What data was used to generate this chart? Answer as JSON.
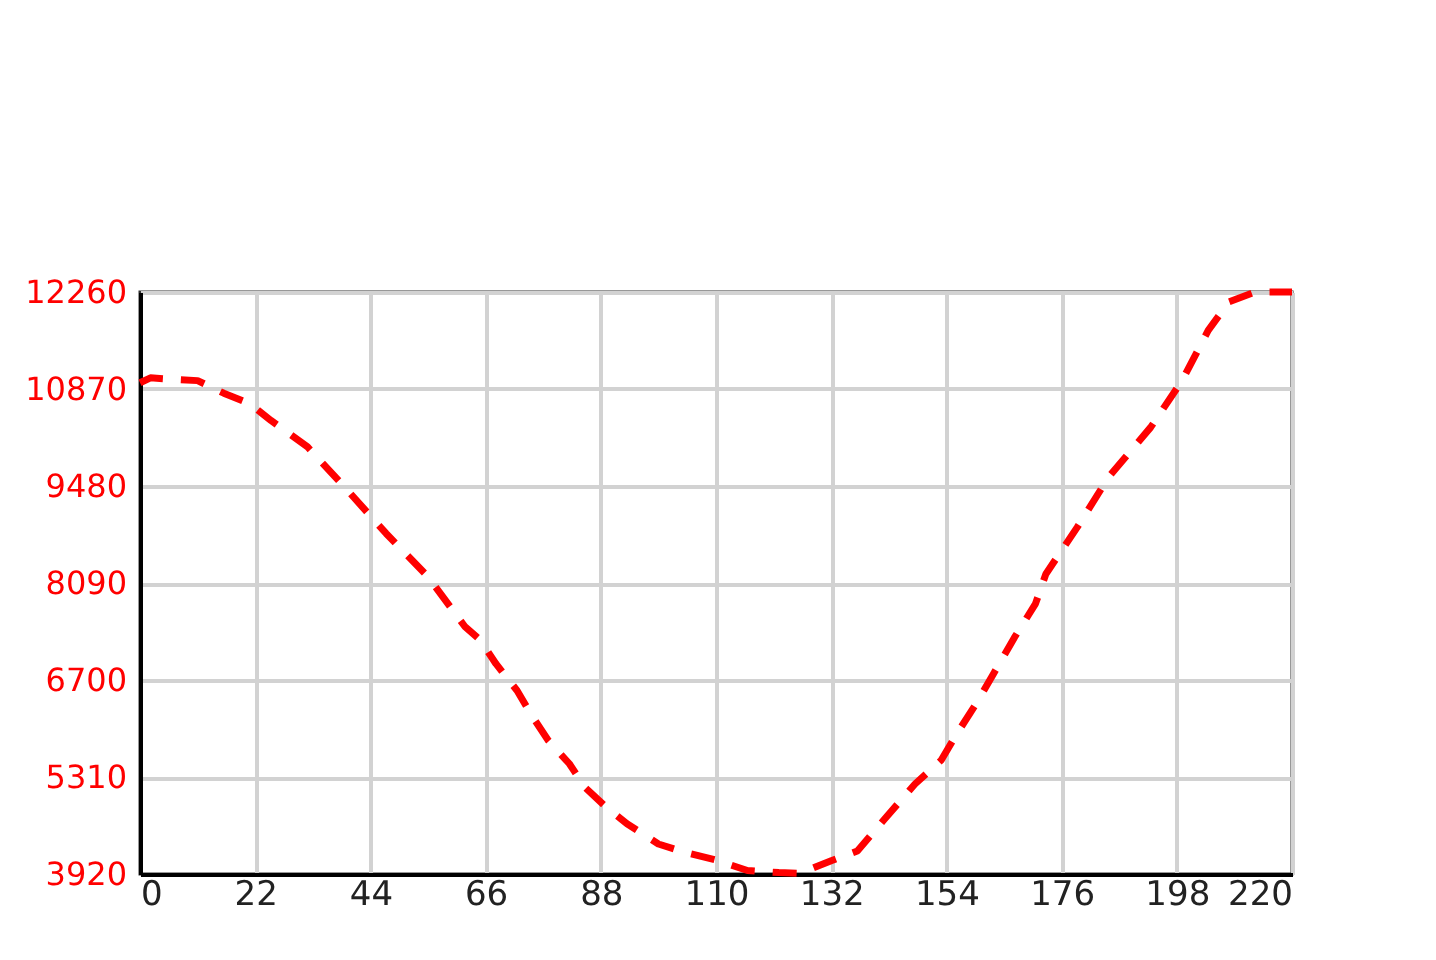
{
  "chart_data": {
    "type": "line",
    "x": [
      0,
      2,
      6,
      11,
      16,
      21,
      25,
      32,
      39,
      47,
      55,
      62,
      65,
      68,
      72,
      75,
      78,
      82,
      85,
      89,
      93,
      99,
      104,
      110,
      116,
      122,
      126,
      132,
      137,
      142,
      148,
      153,
      156,
      160,
      163,
      167,
      171,
      173,
      179,
      185,
      193,
      199,
      204,
      208,
      213,
      219,
      220
    ],
    "series": [
      {
        "color": "#ff0000",
        "values": [
          10960,
          11030,
          11010,
          10990,
          10810,
          10660,
          10420,
          10040,
          9470,
          8800,
          8180,
          7470,
          7270,
          6930,
          6550,
          6170,
          5830,
          5500,
          5160,
          4880,
          4640,
          4350,
          4230,
          4120,
          3970,
          3940,
          3930,
          4110,
          4250,
          4690,
          5210,
          5550,
          5930,
          6400,
          6790,
          7310,
          7790,
          8220,
          8890,
          9610,
          10320,
          10990,
          11710,
          12120,
          12260,
          12260,
          12260
        ]
      }
    ],
    "xlim": [
      0,
      220
    ],
    "xticks": [
      0,
      22,
      44,
      66,
      88,
      110,
      132,
      154,
      176,
      198,
      220
    ],
    "ylim": [
      3920,
      12260
    ],
    "yticks": [
      3920,
      5310,
      6700,
      8090,
      9480,
      10870,
      12260
    ],
    "grid": true,
    "line_style": "dashed"
  }
}
